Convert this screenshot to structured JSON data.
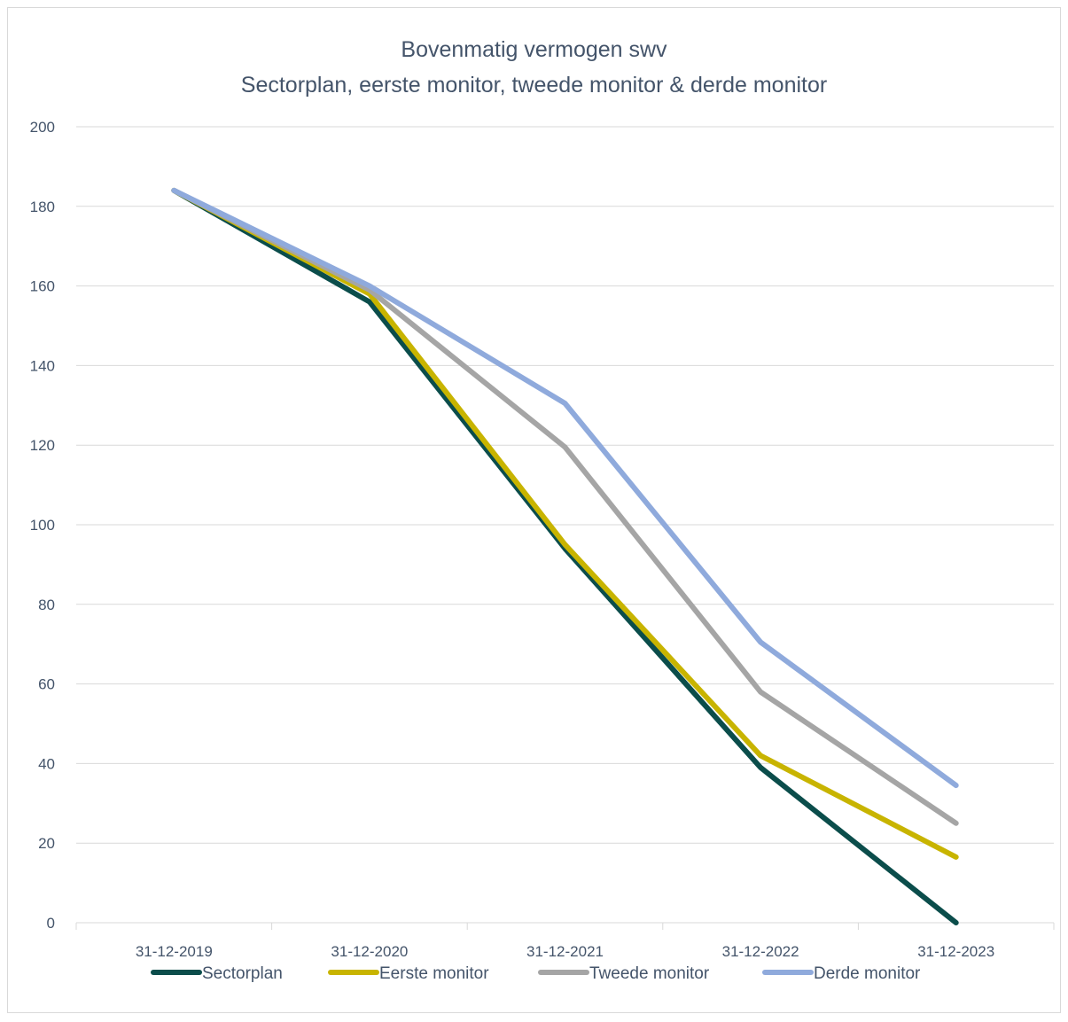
{
  "chart_data": {
    "type": "line",
    "title": "Bovenmatig vermogen swv",
    "subtitle": "Sectorplan, eerste monitor, tweede monitor & derde monitor",
    "categories": [
      "31-12-2019",
      "31-12-2020",
      "31-12-2021",
      "31-12-2022",
      "31-12-2023"
    ],
    "ylim": [
      0,
      200
    ],
    "yticks": [
      0,
      20,
      40,
      60,
      80,
      100,
      120,
      140,
      160,
      180,
      200
    ],
    "grid": true,
    "legend_position": "bottom",
    "series": [
      {
        "name": "Sectorplan",
        "color": "#0b4d4b",
        "values": [
          184,
          156,
          94,
          39,
          0
        ]
      },
      {
        "name": "Eerste monitor",
        "color": "#c8b400",
        "values": [
          184,
          158,
          95,
          42,
          16.5
        ]
      },
      {
        "name": "Tweede monitor",
        "color": "#a5a5a5",
        "values": [
          184,
          159,
          119.5,
          58,
          25
        ]
      },
      {
        "name": "Derde monitor",
        "color": "#8faadc",
        "values": [
          184,
          160,
          130.5,
          70.5,
          34.5
        ]
      }
    ]
  }
}
